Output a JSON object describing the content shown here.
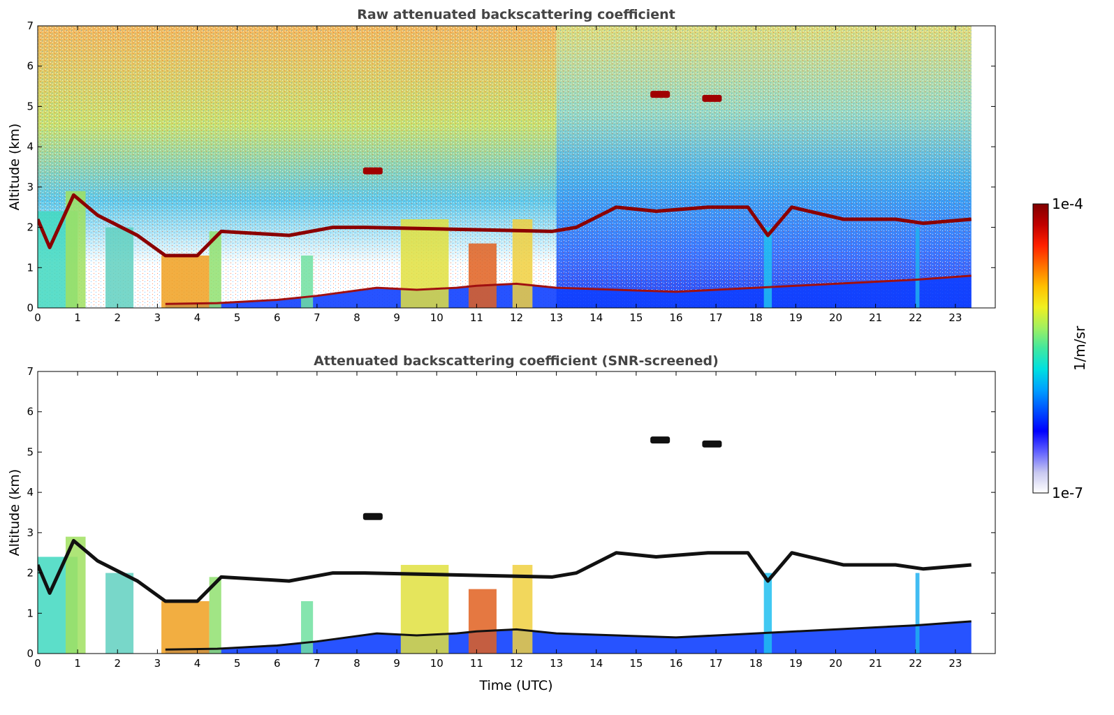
{
  "chart_data": [
    {
      "type": "heatmap",
      "title": "Raw attenuated backscattering coefficient",
      "xlabel": "",
      "ylabel": "Altitude (km)",
      "xlim": [
        0,
        24
      ],
      "ylim": [
        0,
        7
      ],
      "xticks": [
        "0",
        "1",
        "2",
        "3",
        "4",
        "5",
        "6",
        "7",
        "8",
        "9",
        "10",
        "11",
        "12",
        "13",
        "14",
        "15",
        "16",
        "17",
        "18",
        "19",
        "20",
        "21",
        "22",
        "23"
      ],
      "yticks": [
        "0",
        "1",
        "2",
        "3",
        "4",
        "5",
        "6",
        "7"
      ],
      "data_end_hour": 23.4,
      "layers": {
        "cloud_base_km": [
          [
            0,
            2.2
          ],
          [
            0.3,
            1.5
          ],
          [
            0.9,
            2.8
          ],
          [
            1.5,
            2.3
          ],
          [
            2.5,
            1.8
          ],
          [
            3.2,
            1.3
          ],
          [
            4.0,
            1.3
          ],
          [
            4.6,
            1.9
          ],
          [
            6.3,
            1.8
          ],
          [
            7.4,
            2.0
          ],
          [
            8.2,
            2.0
          ],
          [
            12.9,
            1.9
          ],
          [
            13.5,
            2.0
          ],
          [
            14.5,
            2.5
          ],
          [
            15.5,
            2.4
          ],
          [
            16.8,
            2.5
          ],
          [
            17.8,
            2.5
          ],
          [
            18.3,
            1.8
          ],
          [
            18.9,
            2.5
          ],
          [
            20.2,
            2.2
          ],
          [
            21.5,
            2.2
          ],
          [
            22.2,
            2.1
          ],
          [
            23.4,
            2.2
          ]
        ],
        "boundary_layer_top_km": [
          [
            3.2,
            0.1
          ],
          [
            4.5,
            0.12
          ],
          [
            6.0,
            0.2
          ],
          [
            7.0,
            0.3
          ],
          [
            8.5,
            0.5
          ],
          [
            9.5,
            0.45
          ],
          [
            10.5,
            0.5
          ],
          [
            11.0,
            0.55
          ],
          [
            12.0,
            0.6
          ],
          [
            13.0,
            0.5
          ],
          [
            16.0,
            0.4
          ],
          [
            20.0,
            0.6
          ],
          [
            22.0,
            0.7
          ],
          [
            23.4,
            0.8
          ]
        ],
        "high_cloud_patches": [
          {
            "t": 15.6,
            "km": 5.3
          },
          {
            "t": 16.9,
            "km": 5.2
          },
          {
            "t": 8.4,
            "km": 3.4
          }
        ]
      }
    },
    {
      "type": "heatmap",
      "title": "Attenuated backscattering coefficient (SNR-screened)",
      "xlabel": "Time (UTC)",
      "ylabel": "Altitude (km)",
      "xlim": [
        0,
        24
      ],
      "ylim": [
        0,
        7
      ],
      "xticks": [
        "0",
        "1",
        "2",
        "3",
        "4",
        "5",
        "6",
        "7",
        "8",
        "9",
        "10",
        "11",
        "12",
        "13",
        "14",
        "15",
        "16",
        "17",
        "18",
        "19",
        "20",
        "21",
        "22",
        "23"
      ],
      "yticks": [
        "0",
        "1",
        "2",
        "3",
        "4",
        "5",
        "6",
        "7"
      ]
    }
  ],
  "colorbar": {
    "label": "1/m/sr",
    "max_label": "1e-4",
    "min_label": "1e-7",
    "colors": [
      "#ffffff",
      "#c8c8f0",
      "#6060ff",
      "#0000ff",
      "#0050ff",
      "#00a0ff",
      "#00e0e0",
      "#40e8a0",
      "#a0f060",
      "#f0f020",
      "#ffc000",
      "#ff7000",
      "#ff2000",
      "#c00000",
      "#800000"
    ]
  }
}
